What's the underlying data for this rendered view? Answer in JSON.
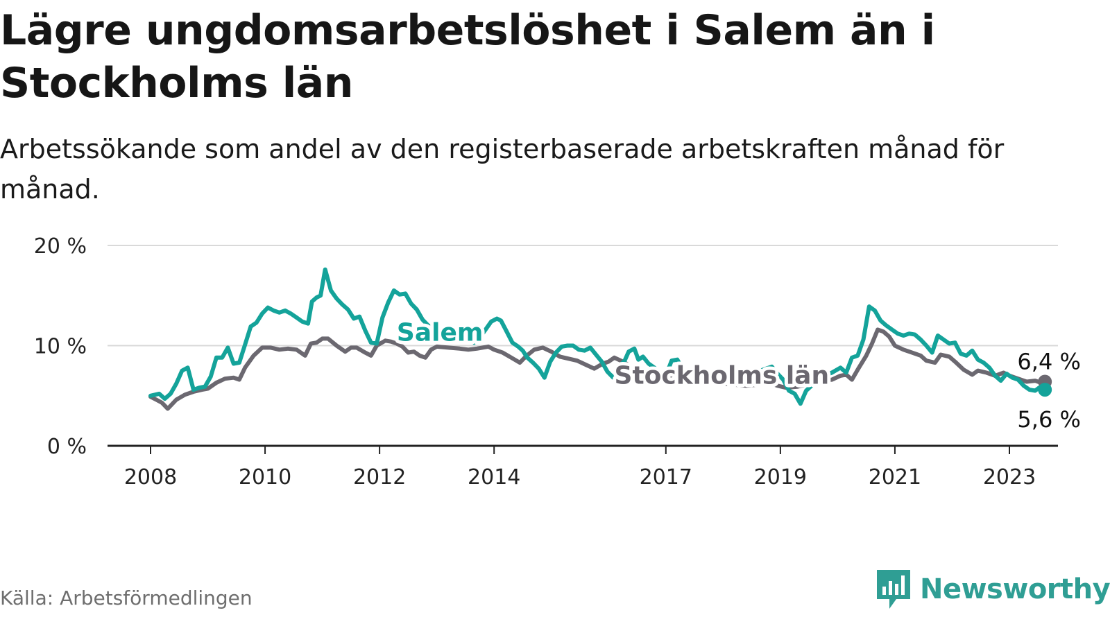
{
  "title": "Lägre ungdomsarbetslöshet i Salem än i Stockholms län",
  "subtitle": "Arbetssökande som andel av den registerbaserade arbetskraften månad för månad.",
  "source": "Källa: Arbetsförmedlingen",
  "brand": "Newsworthy",
  "colors": {
    "salem": "#14a39a",
    "stockholm": "#6b6870",
    "grid": "#d9d9d9",
    "axis": "#222222",
    "brand": "#2f9e94"
  },
  "chart_data": {
    "type": "line",
    "title": "Lägre ungdomsarbetslöshet i Salem än i Stockholms län",
    "xlabel": "",
    "ylabel": "",
    "ylim": [
      0,
      20
    ],
    "xlim": [
      2007.75,
      2024.0
    ],
    "y_ticks": [
      {
        "value": 0,
        "label": "0 %"
      },
      {
        "value": 10,
        "label": "10 %"
      },
      {
        "value": 20,
        "label": "20 %"
      }
    ],
    "x_ticks": [
      {
        "value": 2008,
        "label": "2008"
      },
      {
        "value": 2010,
        "label": "2010"
      },
      {
        "value": 2012,
        "label": "2012"
      },
      {
        "value": 2014,
        "label": "2014"
      },
      {
        "value": 2017,
        "label": "2017"
      },
      {
        "value": 2019,
        "label": "2019"
      },
      {
        "value": 2021,
        "label": "2021"
      },
      {
        "value": 2023,
        "label": "2023"
      }
    ],
    "series": [
      {
        "name": "Stockholms län",
        "label": "Stockholms län",
        "end_label": "6,4 %",
        "color_key": "stockholm",
        "label_x": 2016.1,
        "label_y": 6.2,
        "points": [
          [
            2008.0,
            4.9
          ],
          [
            2008.1,
            4.6
          ],
          [
            2008.2,
            4.3
          ],
          [
            2008.3,
            3.7
          ],
          [
            2008.45,
            4.6
          ],
          [
            2008.6,
            5.1
          ],
          [
            2008.75,
            5.4
          ],
          [
            2008.9,
            5.6
          ],
          [
            2009.0,
            5.7
          ],
          [
            2009.15,
            6.3
          ],
          [
            2009.3,
            6.7
          ],
          [
            2009.45,
            6.8
          ],
          [
            2009.55,
            6.6
          ],
          [
            2009.65,
            7.8
          ],
          [
            2009.8,
            9.0
          ],
          [
            2009.95,
            9.8
          ],
          [
            2010.1,
            9.8
          ],
          [
            2010.25,
            9.6
          ],
          [
            2010.4,
            9.7
          ],
          [
            2010.55,
            9.6
          ],
          [
            2010.7,
            9.0
          ],
          [
            2010.8,
            10.2
          ],
          [
            2010.9,
            10.3
          ],
          [
            2011.0,
            10.7
          ],
          [
            2011.1,
            10.7
          ],
          [
            2011.25,
            10.0
          ],
          [
            2011.4,
            9.4
          ],
          [
            2011.5,
            9.8
          ],
          [
            2011.6,
            9.8
          ],
          [
            2011.75,
            9.3
          ],
          [
            2011.85,
            9.0
          ],
          [
            2011.95,
            10.0
          ],
          [
            2012.1,
            10.5
          ],
          [
            2012.2,
            10.4
          ],
          [
            2012.3,
            10.2
          ],
          [
            2012.4,
            9.9
          ],
          [
            2012.5,
            9.3
          ],
          [
            2012.6,
            9.4
          ],
          [
            2012.7,
            9.0
          ],
          [
            2012.8,
            8.8
          ],
          [
            2012.9,
            9.6
          ],
          [
            2013.0,
            9.9
          ],
          [
            2013.2,
            9.8
          ],
          [
            2013.4,
            9.7
          ],
          [
            2013.55,
            9.6
          ],
          [
            2013.7,
            9.7
          ],
          [
            2013.9,
            9.9
          ],
          [
            2014.0,
            9.6
          ],
          [
            2014.15,
            9.3
          ],
          [
            2014.3,
            8.8
          ],
          [
            2014.45,
            8.3
          ],
          [
            2014.55,
            8.9
          ],
          [
            2014.7,
            9.6
          ],
          [
            2014.85,
            9.8
          ],
          [
            2015.0,
            9.4
          ],
          [
            2015.15,
            8.9
          ],
          [
            2015.3,
            8.7
          ],
          [
            2015.45,
            8.5
          ],
          [
            2015.6,
            8.1
          ],
          [
            2015.75,
            7.7
          ],
          [
            2015.9,
            8.2
          ],
          [
            2016.0,
            8.4
          ],
          [
            2016.1,
            8.8
          ],
          [
            2016.25,
            8.4
          ],
          [
            2016.4,
            7.9
          ],
          [
            2016.55,
            7.6
          ],
          [
            2016.7,
            7.3
          ],
          [
            2016.85,
            7.1
          ],
          [
            2017.0,
            6.9
          ],
          [
            2017.2,
            6.7
          ],
          [
            2017.4,
            6.5
          ],
          [
            2017.6,
            6.4
          ],
          [
            2017.8,
            6.3
          ],
          [
            2018.0,
            6.2
          ],
          [
            2018.2,
            6.1
          ],
          [
            2018.4,
            6.0
          ],
          [
            2018.6,
            6.1
          ],
          [
            2018.8,
            6.3
          ],
          [
            2018.95,
            6.0
          ],
          [
            2019.1,
            5.8
          ],
          [
            2019.3,
            5.9
          ],
          [
            2019.5,
            6.2
          ],
          [
            2019.7,
            6.5
          ],
          [
            2019.9,
            6.6
          ],
          [
            2020.05,
            7.0
          ],
          [
            2020.15,
            7.1
          ],
          [
            2020.25,
            6.6
          ],
          [
            2020.35,
            7.6
          ],
          [
            2020.5,
            9.0
          ],
          [
            2020.6,
            10.2
          ],
          [
            2020.7,
            11.6
          ],
          [
            2020.8,
            11.4
          ],
          [
            2020.9,
            10.9
          ],
          [
            2021.0,
            10.0
          ],
          [
            2021.15,
            9.6
          ],
          [
            2021.3,
            9.3
          ],
          [
            2021.45,
            9.0
          ],
          [
            2021.55,
            8.5
          ],
          [
            2021.7,
            8.3
          ],
          [
            2021.8,
            9.1
          ],
          [
            2021.95,
            8.9
          ],
          [
            2022.05,
            8.4
          ],
          [
            2022.2,
            7.6
          ],
          [
            2022.35,
            7.1
          ],
          [
            2022.45,
            7.5
          ],
          [
            2022.6,
            7.3
          ],
          [
            2022.75,
            7.0
          ],
          [
            2022.9,
            7.3
          ],
          [
            2023.0,
            7.0
          ],
          [
            2023.1,
            6.8
          ],
          [
            2023.2,
            6.6
          ],
          [
            2023.3,
            6.4
          ],
          [
            2023.45,
            6.5
          ],
          [
            2023.55,
            6.3
          ],
          [
            2023.62,
            6.4
          ]
        ]
      },
      {
        "name": "Salem",
        "label": "Salem",
        "end_label": "5,6 %",
        "color_key": "salem",
        "label_x": 2012.3,
        "label_y": 10.5,
        "points": [
          [
            2008.0,
            5.0
          ],
          [
            2008.15,
            5.2
          ],
          [
            2008.25,
            4.7
          ],
          [
            2008.35,
            5.2
          ],
          [
            2008.45,
            6.2
          ],
          [
            2008.55,
            7.5
          ],
          [
            2008.65,
            7.8
          ],
          [
            2008.75,
            5.6
          ],
          [
            2008.85,
            5.8
          ],
          [
            2008.95,
            5.9
          ],
          [
            2009.05,
            6.9
          ],
          [
            2009.15,
            8.8
          ],
          [
            2009.25,
            8.8
          ],
          [
            2009.35,
            9.8
          ],
          [
            2009.45,
            8.2
          ],
          [
            2009.55,
            8.3
          ],
          [
            2009.65,
            10.1
          ],
          [
            2009.75,
            11.9
          ],
          [
            2009.85,
            12.3
          ],
          [
            2009.95,
            13.2
          ],
          [
            2010.05,
            13.8
          ],
          [
            2010.15,
            13.5
          ],
          [
            2010.25,
            13.3
          ],
          [
            2010.35,
            13.5
          ],
          [
            2010.45,
            13.2
          ],
          [
            2010.55,
            12.8
          ],
          [
            2010.65,
            12.4
          ],
          [
            2010.75,
            12.2
          ],
          [
            2010.82,
            14.4
          ],
          [
            2010.9,
            14.8
          ],
          [
            2010.97,
            15.0
          ],
          [
            2011.05,
            17.6
          ],
          [
            2011.15,
            15.5
          ],
          [
            2011.25,
            14.7
          ],
          [
            2011.35,
            14.1
          ],
          [
            2011.45,
            13.6
          ],
          [
            2011.55,
            12.7
          ],
          [
            2011.65,
            12.9
          ],
          [
            2011.75,
            11.5
          ],
          [
            2011.85,
            10.3
          ],
          [
            2011.95,
            10.2
          ],
          [
            2012.05,
            12.8
          ],
          [
            2012.15,
            14.3
          ],
          [
            2012.25,
            15.5
          ],
          [
            2012.35,
            15.1
          ],
          [
            2012.45,
            15.2
          ],
          [
            2012.55,
            14.2
          ],
          [
            2012.65,
            13.6
          ],
          [
            2012.75,
            12.6
          ],
          [
            2012.85,
            12.0
          ],
          [
            2012.95,
            11.8
          ],
          [
            2013.05,
            11.6
          ],
          [
            2013.15,
            11.4
          ],
          [
            2013.25,
            11.2
          ],
          [
            2013.35,
            11.1
          ],
          [
            2013.45,
            11.0
          ],
          [
            2013.55,
            10.7
          ],
          [
            2013.65,
            10.3
          ],
          [
            2013.8,
            11.2
          ],
          [
            2013.95,
            12.4
          ],
          [
            2014.05,
            12.7
          ],
          [
            2014.12,
            12.5
          ],
          [
            2014.22,
            11.4
          ],
          [
            2014.32,
            10.3
          ],
          [
            2014.42,
            9.9
          ],
          [
            2014.5,
            9.5
          ],
          [
            2014.58,
            8.8
          ],
          [
            2014.68,
            8.3
          ],
          [
            2014.78,
            7.7
          ],
          [
            2014.88,
            6.8
          ],
          [
            2014.98,
            8.4
          ],
          [
            2015.08,
            9.3
          ],
          [
            2015.18,
            9.9
          ],
          [
            2015.28,
            10.0
          ],
          [
            2015.38,
            10.0
          ],
          [
            2015.48,
            9.6
          ],
          [
            2015.58,
            9.5
          ],
          [
            2015.68,
            9.8
          ],
          [
            2015.78,
            9.1
          ],
          [
            2015.88,
            8.4
          ],
          [
            2015.98,
            7.4
          ],
          [
            2016.08,
            6.8
          ],
          [
            2016.18,
            7.9
          ],
          [
            2016.28,
            8.5
          ],
          [
            2016.35,
            9.4
          ],
          [
            2016.45,
            9.7
          ],
          [
            2016.52,
            8.6
          ],
          [
            2016.6,
            8.9
          ],
          [
            2016.7,
            8.2
          ],
          [
            2016.8,
            7.8
          ],
          [
            2016.9,
            7.2
          ],
          [
            2017.0,
            7.0
          ],
          [
            2017.1,
            8.5
          ],
          [
            2017.2,
            8.6
          ],
          [
            2017.3,
            7.6
          ],
          [
            2017.5,
            7.2
          ],
          [
            2017.7,
            7.0
          ],
          [
            2017.9,
            6.7
          ],
          [
            2018.1,
            6.5
          ],
          [
            2018.3,
            6.8
          ],
          [
            2018.5,
            7.2
          ],
          [
            2018.7,
            7.6
          ],
          [
            2018.85,
            7.9
          ],
          [
            2018.95,
            7.2
          ],
          [
            2019.05,
            6.6
          ],
          [
            2019.15,
            5.5
          ],
          [
            2019.25,
            5.2
          ],
          [
            2019.35,
            4.2
          ],
          [
            2019.45,
            5.5
          ],
          [
            2019.6,
            6.3
          ],
          [
            2019.75,
            7.0
          ],
          [
            2019.9,
            7.3
          ],
          [
            2020.05,
            7.8
          ],
          [
            2020.15,
            7.3
          ],
          [
            2020.25,
            8.8
          ],
          [
            2020.35,
            9.0
          ],
          [
            2020.45,
            10.6
          ],
          [
            2020.55,
            13.9
          ],
          [
            2020.65,
            13.5
          ],
          [
            2020.75,
            12.5
          ],
          [
            2020.85,
            12.0
          ],
          [
            2020.95,
            11.6
          ],
          [
            2021.05,
            11.2
          ],
          [
            2021.15,
            11.0
          ],
          [
            2021.25,
            11.2
          ],
          [
            2021.35,
            11.1
          ],
          [
            2021.45,
            10.6
          ],
          [
            2021.55,
            10.0
          ],
          [
            2021.65,
            9.3
          ],
          [
            2021.75,
            11.0
          ],
          [
            2021.85,
            10.6
          ],
          [
            2021.95,
            10.2
          ],
          [
            2022.05,
            10.3
          ],
          [
            2022.15,
            9.2
          ],
          [
            2022.25,
            9.0
          ],
          [
            2022.35,
            9.5
          ],
          [
            2022.45,
            8.6
          ],
          [
            2022.55,
            8.3
          ],
          [
            2022.65,
            7.8
          ],
          [
            2022.75,
            7.0
          ],
          [
            2022.85,
            6.5
          ],
          [
            2022.95,
            7.2
          ],
          [
            2023.05,
            6.8
          ],
          [
            2023.15,
            6.6
          ],
          [
            2023.25,
            6.0
          ],
          [
            2023.35,
            5.6
          ],
          [
            2023.45,
            5.5
          ],
          [
            2023.52,
            5.8
          ],
          [
            2023.62,
            5.6
          ]
        ]
      }
    ]
  }
}
